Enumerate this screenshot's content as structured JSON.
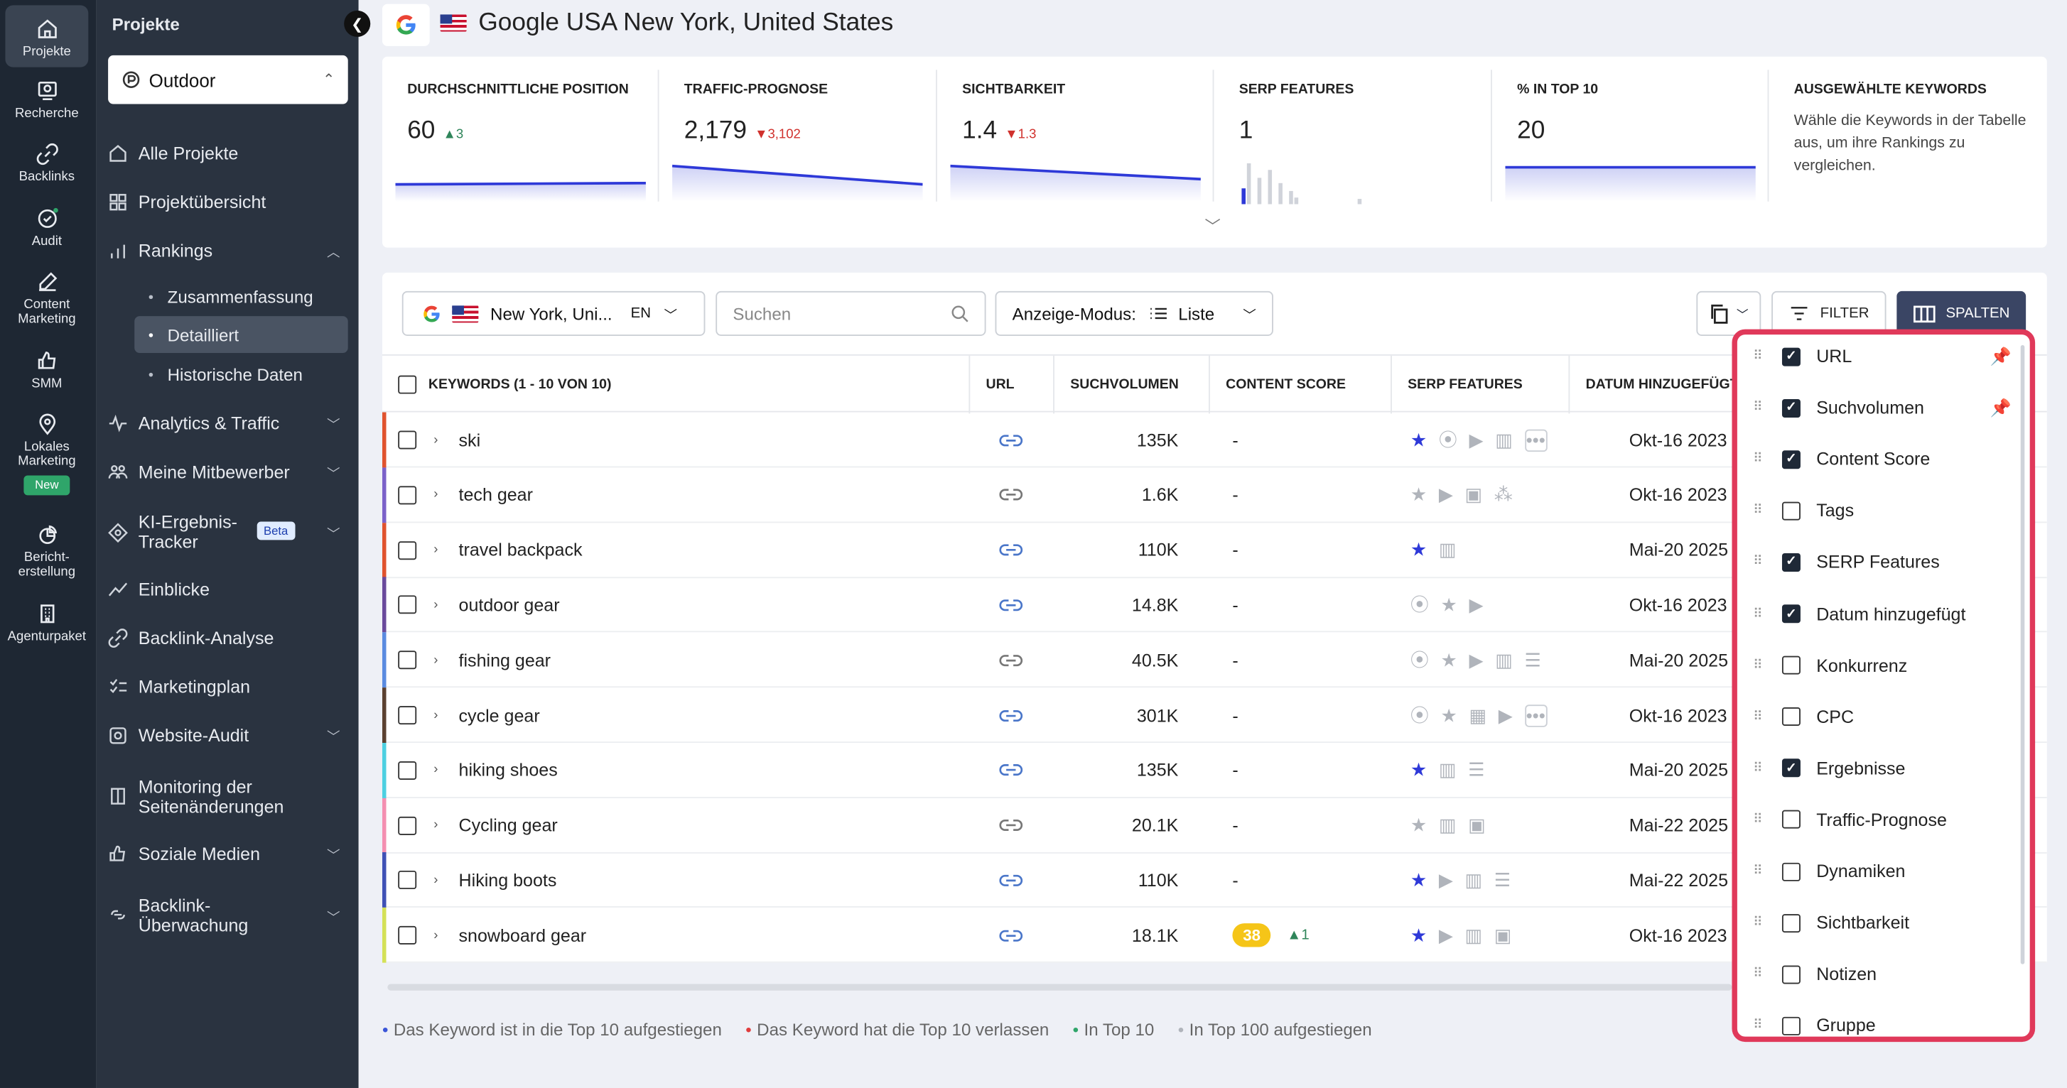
{
  "rail": [
    {
      "label": "Projekte",
      "icon": "home-icon"
    },
    {
      "label": "Recherche",
      "icon": "research-icon"
    },
    {
      "label": "Backlinks",
      "icon": "link-icon"
    },
    {
      "label": "Audit",
      "icon": "audit-icon"
    },
    {
      "label": "Content Marketing",
      "icon": "edit-icon"
    },
    {
      "label": "SMM",
      "icon": "thumb-icon"
    },
    {
      "label": "Lokales Marketing",
      "icon": "pin-icon",
      "badge": "New"
    },
    {
      "label": "Bericht-erstellung",
      "icon": "report-icon"
    },
    {
      "label": "Agenturpaket",
      "icon": "building-icon"
    }
  ],
  "sidebar": {
    "title": "Projekte",
    "project": "Outdoor",
    "items": [
      {
        "label": "Alle Projekte"
      },
      {
        "label": "Projektübersicht"
      },
      {
        "label": "Rankings"
      },
      {
        "label": "Analytics & Traffic"
      },
      {
        "label": "Meine Mitbewerber"
      },
      {
        "label": "KI-Ergebnis-Tracker",
        "badge": "Beta"
      },
      {
        "label": "Einblicke"
      },
      {
        "label": "Backlink-Analyse"
      },
      {
        "label": "Marketingplan"
      },
      {
        "label": "Website-Audit"
      },
      {
        "label": "Monitoring der Seitenänderungen"
      },
      {
        "label": "Soziale Medien"
      },
      {
        "label": "Backlink-Überwachung"
      }
    ],
    "sub_items": [
      "Zusammenfassung",
      "Detailliert",
      "Historische Daten"
    ]
  },
  "header": {
    "title": "Google USA New York, United States"
  },
  "stats": [
    {
      "label": "DURCHSCHNITTLICHE POSITION",
      "value": "60",
      "delta": "3",
      "dir": "up"
    },
    {
      "label": "TRAFFIC-PROGNOSE",
      "value": "2,179",
      "delta": "3,102",
      "dir": "down"
    },
    {
      "label": "SICHTBARKEIT",
      "value": "1.4",
      "delta": "1.3",
      "dir": "down"
    },
    {
      "label": "SERP FEATURES",
      "value": "1",
      "delta": "",
      "dir": ""
    },
    {
      "label": "% IN TOP 10",
      "value": "20",
      "delta": "",
      "dir": ""
    },
    {
      "label": "AUSGEWÄHLTE KEYWORDS",
      "desc": "Wähle die Keywords in der Tabelle aus, um ihre Rankings zu vergleichen."
    }
  ],
  "toolbar": {
    "location": "New York, Uni...",
    "lang": "EN",
    "search_placeholder": "Suchen",
    "mode_label": "Anzeige-Modus:",
    "mode_value": "Liste",
    "filter": "FILTER",
    "columns": "SPALTEN"
  },
  "table": {
    "headers": [
      "KEYWORDS (1 - 10 VON 10)",
      "URL",
      "SUCHVOLUMEN",
      "CONTENT SCORE",
      "SERP FEATURES",
      "DATUM HINZUGEFÜGT"
    ],
    "rows": [
      {
        "keyword": "ski",
        "volume": "135K",
        "score": "-",
        "date": "Okt-16 2023",
        "bar": "#e0532e",
        "serp": [
          "star-on",
          "pin",
          "video",
          "carousel",
          "more"
        ]
      },
      {
        "keyword": "tech gear",
        "volume": "1.6K",
        "score": "-",
        "date": "Okt-16 2023",
        "bar": "#7b61c9",
        "serp": [
          "star",
          "video",
          "image",
          "org"
        ]
      },
      {
        "keyword": "travel backpack",
        "volume": "110K",
        "score": "-",
        "date": "Mai-20 2025",
        "bar": "#e0532e",
        "serp": [
          "star-on",
          "carousel"
        ]
      },
      {
        "keyword": "outdoor gear",
        "volume": "14.8K",
        "score": "-",
        "date": "Okt-16 2023",
        "bar": "#6a4a9c",
        "serp": [
          "pin",
          "star",
          "video"
        ]
      },
      {
        "keyword": "fishing gear",
        "volume": "40.5K",
        "score": "-",
        "date": "Mai-20 2025",
        "bar": "#5a8be0",
        "serp": [
          "pin",
          "star",
          "video",
          "carousel",
          "list"
        ]
      },
      {
        "keyword": "cycle gear",
        "volume": "301K",
        "score": "-",
        "date": "Okt-16 2023",
        "bar": "#5a4030",
        "serp": [
          "pin",
          "star",
          "table",
          "video",
          "more"
        ]
      },
      {
        "keyword": "hiking shoes",
        "volume": "135K",
        "score": "-",
        "date": "Mai-20 2025",
        "bar": "#4dd0e1",
        "serp": [
          "star-on",
          "carousel",
          "list"
        ]
      },
      {
        "keyword": "Cycling gear",
        "volume": "20.1K",
        "score": "-",
        "date": "Mai-22 2025",
        "bar": "#f48fb1",
        "serp": [
          "star",
          "carousel",
          "image"
        ]
      },
      {
        "keyword": "Hiking boots",
        "volume": "110K",
        "score": "-",
        "date": "Mai-22 2025",
        "bar": "#3f51b5",
        "serp": [
          "star-on",
          "video",
          "carousel",
          "list"
        ]
      },
      {
        "keyword": "snowboard gear",
        "volume": "18.1K",
        "score": "38",
        "score_delta": "1",
        "date": "Okt-16 2023",
        "bar": "#d4e157",
        "serp": [
          "star-on",
          "video",
          "carousel",
          "image"
        ]
      }
    ]
  },
  "legend": [
    "Das Keyword ist in die Top 10 aufgestiegen",
    "Das Keyword hat die Top 10 verlassen",
    "In Top 10",
    "In Top 100 aufgestiegen"
  ],
  "columns_menu": [
    {
      "label": "URL",
      "checked": true,
      "pinned": true
    },
    {
      "label": "Suchvolumen",
      "checked": true,
      "pinned": true
    },
    {
      "label": "Content Score",
      "checked": true
    },
    {
      "label": "Tags",
      "checked": false
    },
    {
      "label": "SERP Features",
      "checked": true
    },
    {
      "label": "Datum hinzugefügt",
      "checked": true
    },
    {
      "label": "Konkurrenz",
      "checked": false
    },
    {
      "label": "CPC",
      "checked": false
    },
    {
      "label": "Ergebnisse",
      "checked": true
    },
    {
      "label": "Traffic-Prognose",
      "checked": false
    },
    {
      "label": "Dynamiken",
      "checked": false
    },
    {
      "label": "Sichtbarkeit",
      "checked": false
    },
    {
      "label": "Notizen",
      "checked": false
    },
    {
      "label": "Gruppe",
      "checked": false
    }
  ]
}
